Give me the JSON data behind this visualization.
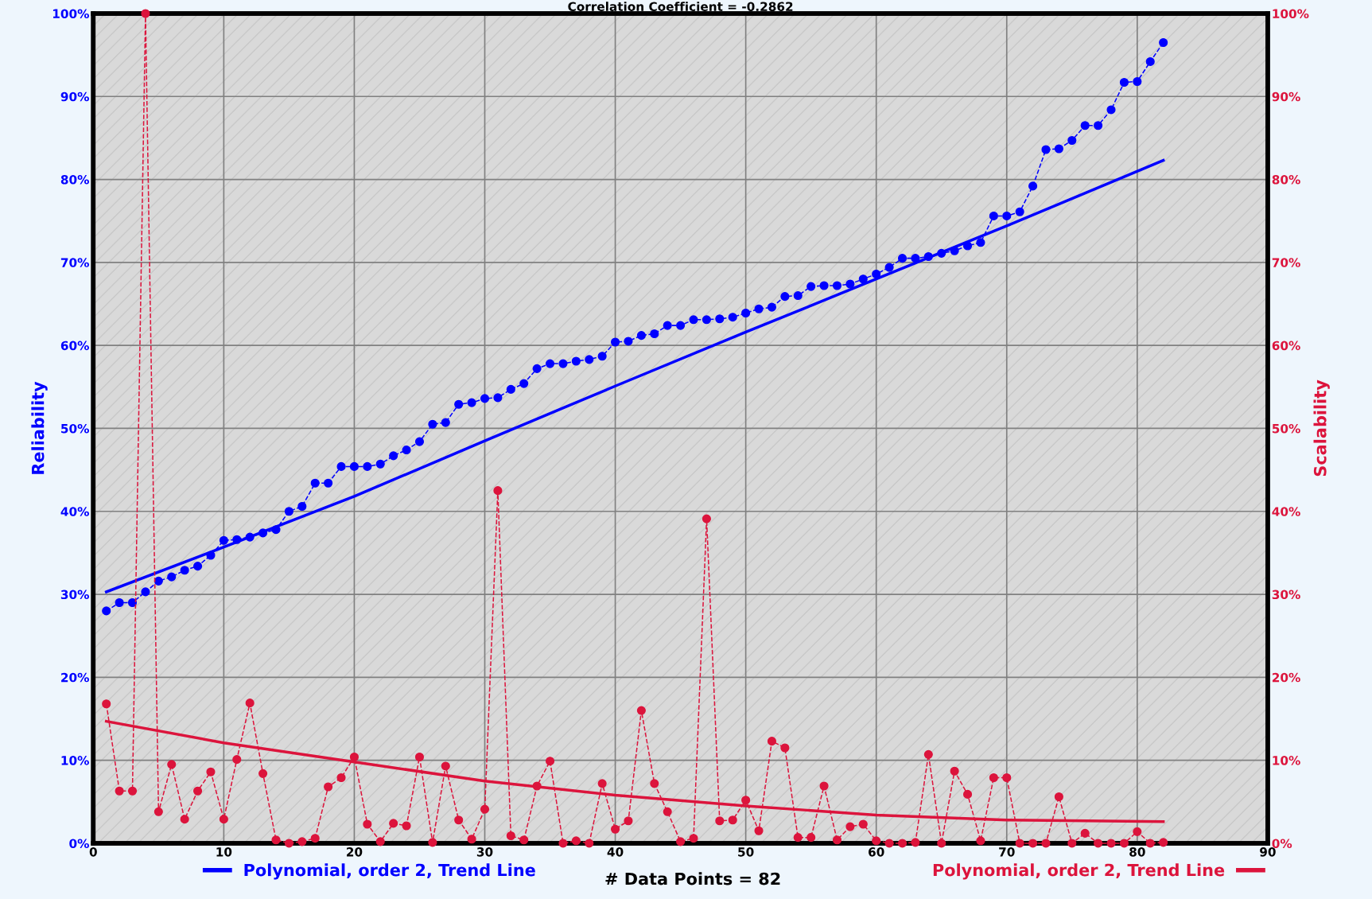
{
  "chart_data": {
    "type": "line",
    "title": "Correlation Coefficient = -0.2862",
    "ylabel": "Reliability",
    "y2label": "Scalability",
    "annotations": [
      "# Data Points = 82"
    ],
    "xlim": [
      0,
      90
    ],
    "xticks": [
      0,
      10,
      20,
      30,
      40,
      50,
      60,
      70,
      80,
      90
    ],
    "ylim": [
      0,
      100
    ],
    "yticks": [
      {
        "value": 0,
        "label": "0%"
      },
      {
        "value": 10,
        "label": "10%"
      },
      {
        "value": 20,
        "label": "20%"
      },
      {
        "value": 30,
        "label": "30%"
      },
      {
        "value": 40,
        "label": "40%"
      },
      {
        "value": 50,
        "label": "50%"
      },
      {
        "value": 60,
        "label": "60%"
      },
      {
        "value": 70,
        "label": "70%"
      },
      {
        "value": 80,
        "label": "80%"
      },
      {
        "value": 90,
        "label": "90%"
      },
      {
        "value": 100,
        "label": "100%"
      }
    ],
    "y2lim": [
      0,
      100
    ],
    "y2ticks": [
      {
        "value": 0,
        "label": "0%"
      },
      {
        "value": 10,
        "label": "10%"
      },
      {
        "value": 20,
        "label": "20%"
      },
      {
        "value": 30,
        "label": "30%"
      },
      {
        "value": 40,
        "label": "40%"
      },
      {
        "value": 50,
        "label": "50%"
      },
      {
        "value": 60,
        "label": "60%"
      },
      {
        "value": 70,
        "label": "70%"
      },
      {
        "value": 80,
        "label": "80%"
      },
      {
        "value": 90,
        "label": "90%"
      },
      {
        "value": 100,
        "label": "100%"
      }
    ],
    "grid": true,
    "legend": "bottom",
    "series": [
      {
        "color": "#0000ff",
        "marker": "circle",
        "line_style": "dashed",
        "x": [
          1,
          2,
          3,
          4,
          5,
          6,
          7,
          8,
          9,
          10,
          11,
          12,
          13,
          14,
          15,
          16,
          17,
          18,
          19,
          20,
          21,
          22,
          23,
          24,
          25,
          26,
          27,
          28,
          29,
          30,
          31,
          32,
          33,
          34,
          35,
          36,
          37,
          38,
          39,
          40,
          41,
          42,
          43,
          44,
          45,
          46,
          47,
          48,
          49,
          50,
          51,
          52,
          53,
          54,
          55,
          56,
          57,
          58,
          59,
          60,
          61,
          62,
          63,
          64,
          65,
          66,
          67,
          68,
          69,
          70,
          71,
          72,
          73,
          74,
          75,
          76,
          77,
          78,
          79,
          80,
          81,
          82
        ],
        "values": [
          28.0,
          29.0,
          29.0,
          30.3,
          31.6,
          32.1,
          32.9,
          33.4,
          34.7,
          36.5,
          36.6,
          36.9,
          37.4,
          37.8,
          40.0,
          40.6,
          43.4,
          43.4,
          45.4,
          45.4,
          45.4,
          45.7,
          46.7,
          47.4,
          48.4,
          50.5,
          50.7,
          52.9,
          53.1,
          53.6,
          53.7,
          54.7,
          55.4,
          57.2,
          57.8,
          57.8,
          58.1,
          58.3,
          58.7,
          60.4,
          60.5,
          61.2,
          61.4,
          62.4,
          62.4,
          63.1,
          63.1,
          63.2,
          63.4,
          63.9,
          64.4,
          64.6,
          65.9,
          66.0,
          67.1,
          67.2,
          67.2,
          67.4,
          68.0,
          68.6,
          69.4,
          70.5,
          70.5,
          70.7,
          71.1,
          71.4,
          72.0,
          72.4,
          75.6,
          75.6,
          76.1,
          79.2,
          83.6,
          83.7,
          84.7,
          86.5,
          86.5,
          88.4,
          91.7,
          91.8,
          94.2,
          96.5
        ]
      },
      {
        "axis": "y2",
        "color": "#dc143c",
        "marker": "circle",
        "line_style": "dashed",
        "x": [
          1,
          2,
          3,
          4,
          5,
          6,
          7,
          8,
          9,
          10,
          11,
          12,
          13,
          14,
          15,
          16,
          17,
          18,
          19,
          20,
          21,
          22,
          23,
          24,
          25,
          26,
          27,
          28,
          29,
          30,
          31,
          32,
          33,
          34,
          35,
          36,
          37,
          38,
          39,
          40,
          41,
          42,
          43,
          44,
          45,
          46,
          47,
          48,
          49,
          50,
          51,
          52,
          53,
          54,
          55,
          56,
          57,
          58,
          59,
          60,
          61,
          62,
          63,
          64,
          65,
          66,
          67,
          68,
          69,
          70,
          71,
          72,
          73,
          74,
          75,
          76,
          77,
          78,
          79,
          80,
          81,
          82
        ],
        "values": [
          16.8,
          6.3,
          6.3,
          100,
          3.8,
          9.5,
          2.9,
          6.3,
          8.6,
          2.9,
          10.1,
          16.9,
          8.4,
          0.4,
          0,
          0.2,
          0.6,
          6.8,
          7.9,
          10.4,
          2.3,
          0.2,
          2.4,
          2.1,
          10.4,
          0.1,
          9.3,
          2.8,
          0.5,
          4.1,
          42.5,
          0.9,
          0.4,
          6.9,
          9.9,
          0,
          0.3,
          0,
          7.2,
          1.7,
          2.7,
          16.0,
          7.2,
          3.8,
          0.2,
          0.6,
          39.1,
          2.7,
          2.8,
          5.2,
          1.5,
          12.3,
          11.5,
          0.7,
          0.7,
          6.9,
          0.4,
          2.0,
          2.3,
          0.3,
          0,
          0,
          0.1,
          10.7,
          0,
          8.7,
          5.9,
          0.3,
          7.9,
          7.9,
          0,
          0,
          0,
          5.6,
          0,
          1.2,
          0,
          0,
          0,
          1.4,
          0,
          0.1
        ]
      },
      {
        "name": "Polynomial, order 2, Trend Line",
        "color": "#0000ff",
        "marker": "none",
        "line_style": "solid",
        "x": [
          1,
          10,
          20,
          30,
          40,
          50,
          60,
          70,
          82
        ],
        "values": [
          30.3,
          35.7,
          41.8,
          48.5,
          55.1,
          61.6,
          68.0,
          74.4,
          82.3
        ]
      },
      {
        "axis": "y2",
        "name": "Polynomial, order 2, Trend Line",
        "color": "#dc143c",
        "marker": "none",
        "line_style": "solid",
        "x": [
          1,
          10,
          20,
          30,
          40,
          50,
          60,
          70,
          82
        ],
        "values": [
          14.7,
          12.1,
          9.8,
          7.5,
          5.8,
          4.5,
          3.4,
          2.8,
          2.6
        ]
      }
    ]
  }
}
